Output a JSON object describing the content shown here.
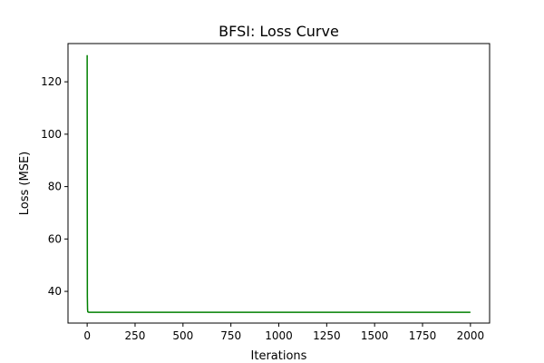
{
  "chart_data": {
    "type": "line",
    "title": "BFSI: Loss Curve",
    "xlabel": "Iterations",
    "ylabel": "Loss (MSE)",
    "xlim": [
      -100,
      2100
    ],
    "ylim": [
      27.9,
      134.6
    ],
    "xticks": [
      0,
      250,
      500,
      750,
      1000,
      1250,
      1500,
      1750,
      2000
    ],
    "yticks": [
      40,
      60,
      80,
      100,
      120
    ],
    "grid": false,
    "legend": "none",
    "series": [
      {
        "color": "#008000",
        "x": [
          0,
          1,
          2,
          3,
          5,
          10,
          50,
          100,
          500,
          1000,
          1500,
          2000
        ],
        "y": [
          130.2,
          38.0,
          33.2,
          32.3,
          32.1,
          32.0,
          32.0,
          32.0,
          32.0,
          32.0,
          32.0,
          32.0
        ]
      }
    ]
  }
}
